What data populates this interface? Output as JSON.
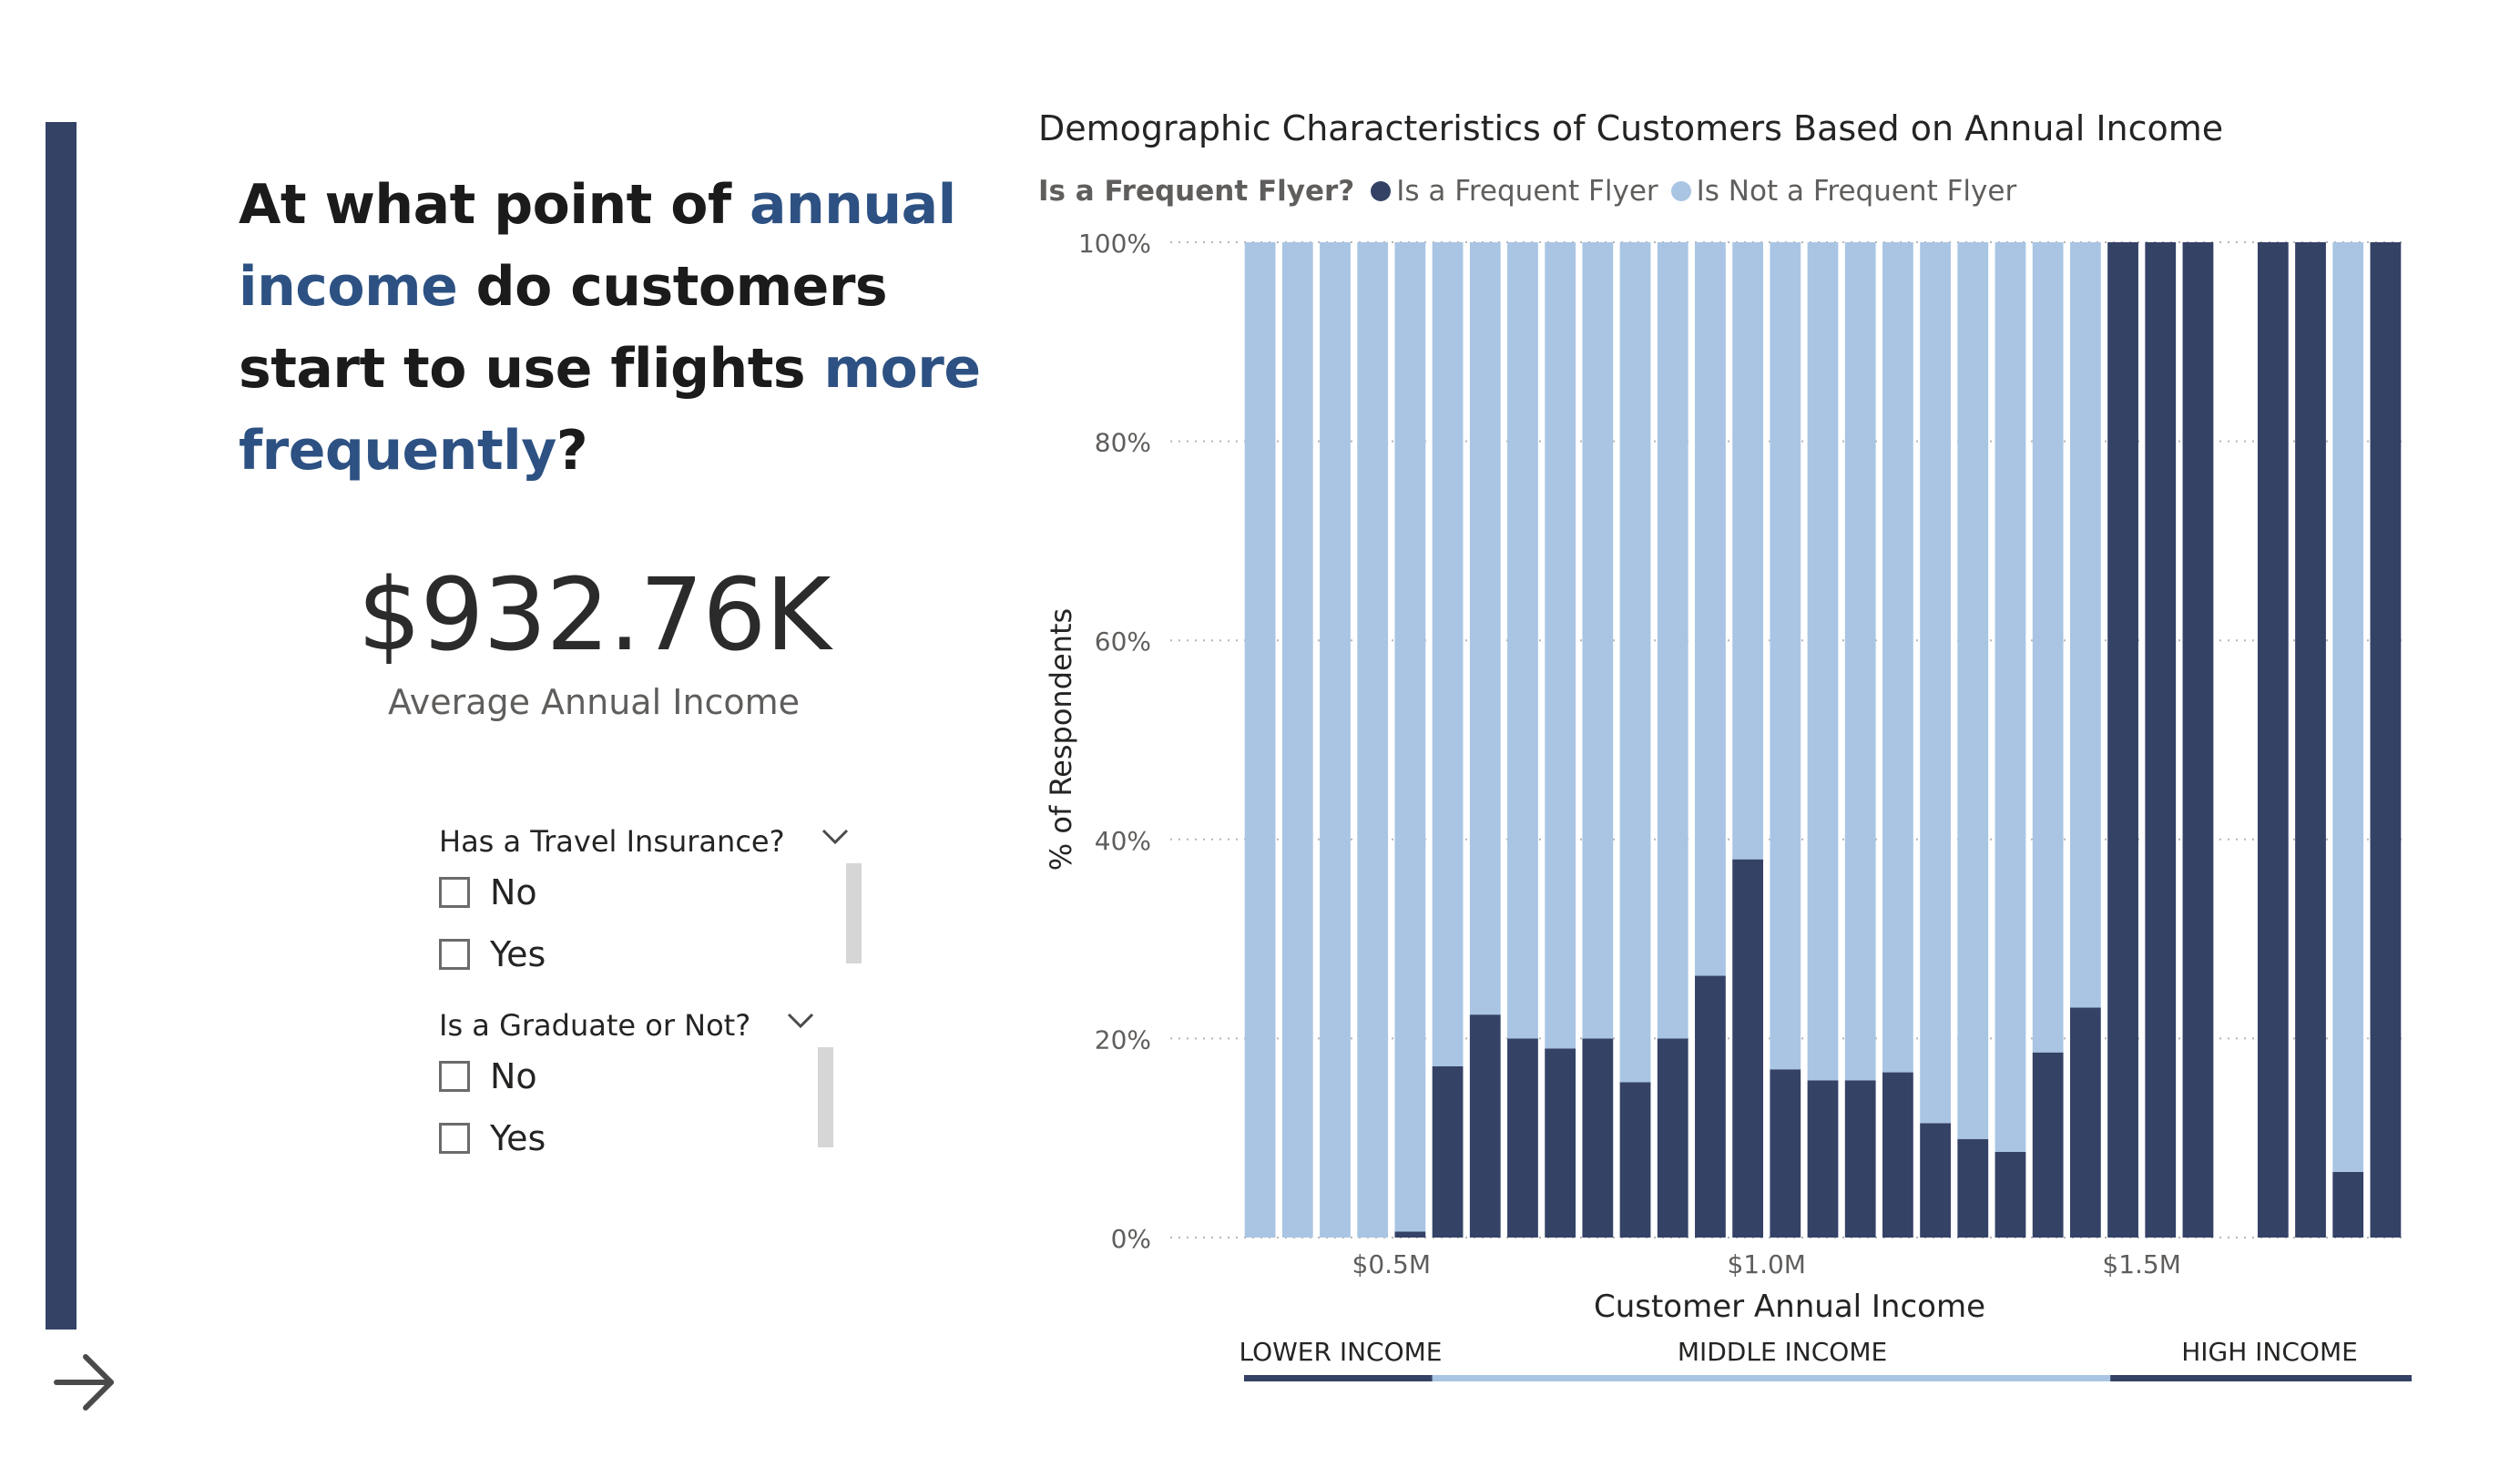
{
  "question": {
    "parts": [
      {
        "text": "At what point of ",
        "highlight": false
      },
      {
        "text": "annual income",
        "highlight": true
      },
      {
        "text": " do customers start to use flights ",
        "highlight": false
      },
      {
        "text": "more frequently",
        "highlight": true
      },
      {
        "text": "?",
        "highlight": false
      }
    ]
  },
  "kpi": {
    "value": "$932.76K",
    "label": "Average Annual Income"
  },
  "slicers": [
    {
      "title": "Has a Travel Insurance?",
      "items": [
        {
          "label": "No",
          "checked": false
        },
        {
          "label": "Yes",
          "checked": false
        }
      ]
    },
    {
      "title": "Is a Graduate or Not?",
      "items": [
        {
          "label": "No",
          "checked": false
        },
        {
          "label": "Yes",
          "checked": false
        }
      ]
    }
  ],
  "colors": {
    "frequent": "#344266",
    "not_frequent": "#a9c5e3",
    "accent_text": "#2d5182",
    "side_bar": "#344266",
    "grid": "#b5b5b5"
  },
  "icons": {
    "next": "arrow-right-icon",
    "expand": "chevron-down-icon"
  },
  "chart_data": {
    "type": "bar",
    "stacked": "percent",
    "title": "Demographic Characteristics of Customers Based on Annual Income",
    "legend": {
      "title": "Is a Frequent Flyer?",
      "placement": "top-left",
      "entries": [
        "Is a Frequent Flyer",
        "Is Not a Frequent Flyer"
      ]
    },
    "xlabel": "Customer Annual Income",
    "ylabel": "% of Respondents",
    "x_unit": "$M",
    "x_ticks": [
      {
        "value": 0.5,
        "label": "$0.5M"
      },
      {
        "value": 1.0,
        "label": "$1.0M"
      },
      {
        "value": 1.5,
        "label": "$1.5M"
      }
    ],
    "xlim": [
      0.3,
      1.85
    ],
    "y_ticks": [
      {
        "value": 0,
        "label": "0%"
      },
      {
        "value": 20,
        "label": "20%"
      },
      {
        "value": 40,
        "label": "40%"
      },
      {
        "value": 60,
        "label": "60%"
      },
      {
        "value": 80,
        "label": "80%"
      },
      {
        "value": 100,
        "label": "100%"
      }
    ],
    "ylim": [
      0,
      100
    ],
    "grid": "horizontal dotted",
    "x": [
      0.3,
      0.35,
      0.4,
      0.45,
      0.5,
      0.55,
      0.6,
      0.65,
      0.7,
      0.75,
      0.8,
      0.85,
      0.9,
      0.95,
      1.0,
      1.05,
      1.1,
      1.15,
      1.2,
      1.25,
      1.3,
      1.35,
      1.4,
      1.45,
      1.5,
      1.55,
      1.65,
      1.7,
      1.75,
      1.8
    ],
    "series": [
      {
        "name": "Is a Frequent Flyer",
        "values": [
          0,
          0,
          0,
          0,
          0.6,
          17.2,
          22.4,
          20.0,
          19.0,
          20.0,
          15.6,
          20.0,
          26.3,
          38.0,
          16.9,
          15.8,
          15.8,
          16.6,
          11.5,
          9.9,
          8.6,
          18.6,
          23.1,
          100,
          100,
          100,
          100,
          100,
          6.6,
          100
        ]
      },
      {
        "name": "Is Not a Frequent Flyer",
        "values": [
          100,
          100,
          100,
          100,
          99.4,
          82.8,
          77.6,
          80.0,
          81.0,
          80.0,
          84.4,
          80.0,
          73.7,
          62.0,
          83.1,
          84.2,
          84.2,
          83.4,
          88.5,
          90.1,
          91.4,
          81.4,
          76.9,
          0,
          0,
          0,
          0,
          0,
          93.4,
          0
        ]
      }
    ],
    "bands": [
      {
        "label": "LOWER INCOME",
        "from": 0.3,
        "to": 0.55
      },
      {
        "label": "MIDDLE INCOME",
        "from": 0.55,
        "to": 1.45
      },
      {
        "label": "HIGH INCOME",
        "from": 1.45,
        "to": 1.85
      }
    ]
  }
}
